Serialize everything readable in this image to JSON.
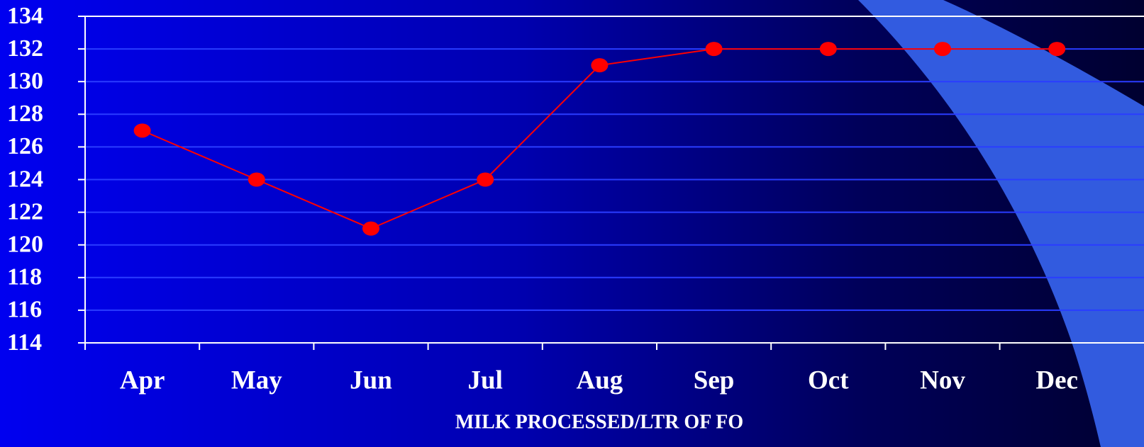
{
  "chart_data": {
    "type": "line",
    "x_label": "MILK PROCESSED/LTR OF FO",
    "categories": [
      "Apr",
      "May",
      "Jun",
      "Jul",
      "Aug",
      "Sep",
      "Oct",
      "Nov",
      "Dec"
    ],
    "series": [
      {
        "name": "Milk processed per ltr of FO",
        "color": "#ff0000",
        "values": [
          127,
          124,
          121,
          124,
          131,
          132,
          132,
          132,
          132
        ]
      }
    ],
    "ylim": [
      114,
      134
    ],
    "yticks": [
      114,
      116,
      118,
      120,
      122,
      124,
      126,
      128,
      130,
      132,
      134
    ],
    "grid": true,
    "legend": false
  }
}
